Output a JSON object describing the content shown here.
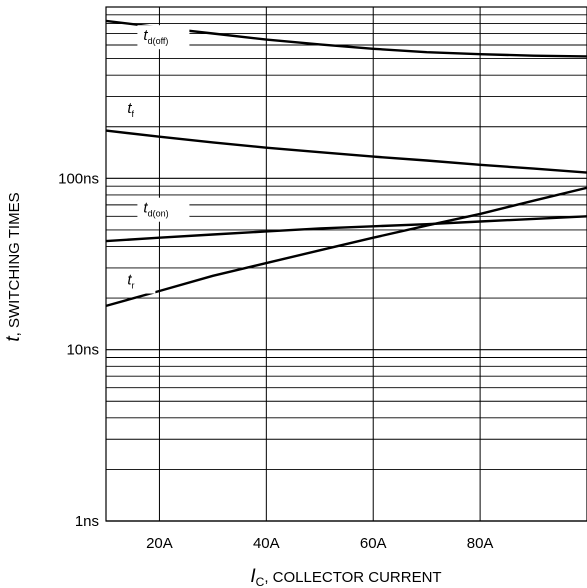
{
  "chart_data": {
    "type": "line",
    "title": "",
    "xlabel": {
      "symbol": "I",
      "sub": "C",
      "text": ", COLLECTOR CURRENT"
    },
    "ylabel": {
      "symbol": "t",
      "text": ", SWITCHING TIMES"
    },
    "xlim": [
      10,
      100
    ],
    "ylim": [
      1,
      1000
    ],
    "yscale": "log",
    "grid": true,
    "x_ticks": [
      {
        "value": 20,
        "label": "20A"
      },
      {
        "value": 40,
        "label": "40A"
      },
      {
        "value": 60,
        "label": "60A"
      },
      {
        "value": 80,
        "label": "80A"
      }
    ],
    "y_ticks": [
      {
        "value": 1,
        "label": "1ns"
      },
      {
        "value": 10,
        "label": "10ns"
      },
      {
        "value": 100,
        "label": "100ns"
      }
    ],
    "series": [
      {
        "name": "t_d(off)",
        "label_main": "t",
        "label_sub": "d(off)",
        "label_at": [
          17,
          640
        ],
        "x": [
          10,
          20,
          30,
          40,
          50,
          60,
          70,
          80,
          90,
          100
        ],
        "y": [
          830,
          760,
          700,
          645,
          605,
          570,
          545,
          530,
          520,
          515
        ]
      },
      {
        "name": "t_f",
        "label_main": "t",
        "label_sub": "f",
        "label_at": [
          14,
          240
        ],
        "x": [
          10,
          20,
          30,
          40,
          50,
          60,
          70,
          80,
          90,
          100
        ],
        "y": [
          190,
          175,
          162,
          151,
          142,
          134,
          127,
          120,
          114,
          108
        ]
      },
      {
        "name": "t_d(on)",
        "label_main": "t",
        "label_sub": "d(on)",
        "label_at": [
          17,
          63
        ],
        "x": [
          10,
          20,
          30,
          40,
          50,
          60,
          70,
          80,
          90,
          100
        ],
        "y": [
          43,
          45,
          47,
          49,
          51,
          52.5,
          54,
          56,
          58,
          60
        ]
      },
      {
        "name": "t_r",
        "label_main": "t",
        "label_sub": "r",
        "label_at": [
          14,
          24
        ],
        "x": [
          10,
          20,
          30,
          40,
          50,
          60,
          70,
          80,
          90,
          100
        ],
        "y": [
          18,
          22,
          27,
          32,
          38,
          45,
          53,
          62,
          74,
          88
        ]
      }
    ]
  }
}
